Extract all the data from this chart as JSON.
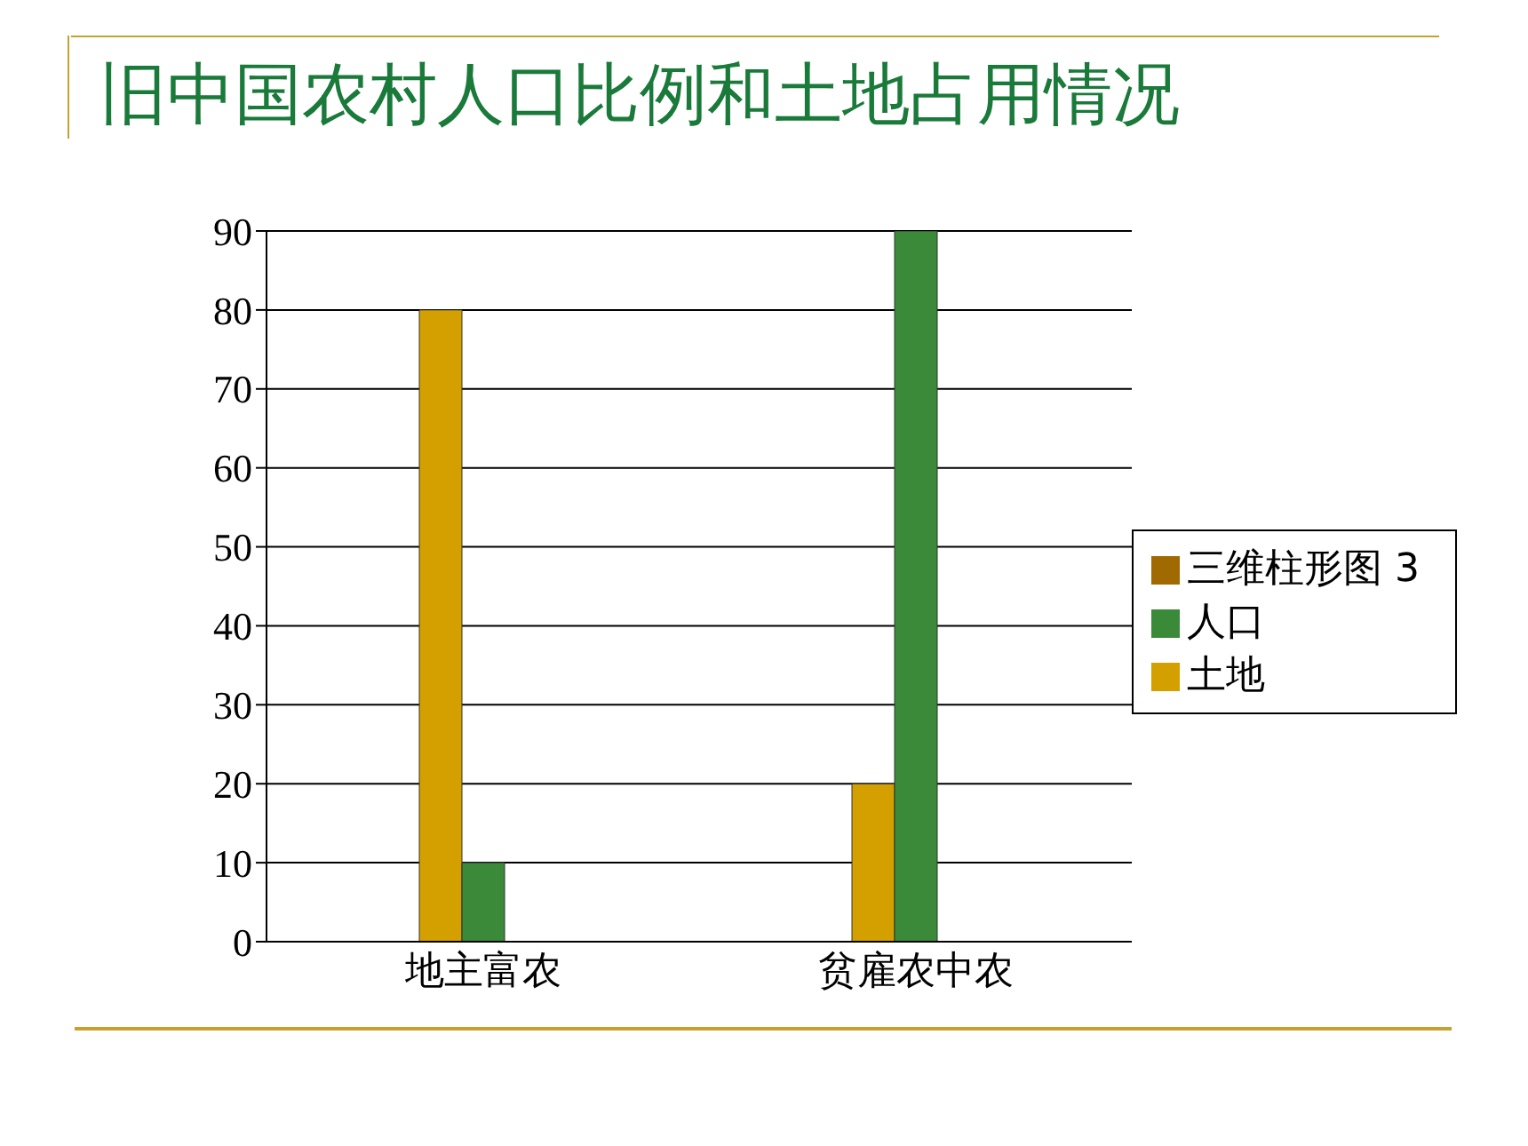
{
  "chart_data": {
    "type": "bar",
    "title": "旧中国农村人口比例和土地占用情况",
    "categories": [
      "地主富农",
      "贫雇农中农"
    ],
    "series": [
      {
        "name": "土地",
        "color": "#d4a000",
        "values": [
          80,
          20
        ]
      },
      {
        "name": "人口",
        "color": "#3a8a3a",
        "values": [
          10,
          90
        ]
      },
      {
        "name": "三维柱形图 3",
        "color": "#a06a00",
        "values": [
          null,
          null
        ]
      }
    ],
    "ylim": [
      0,
      90
    ],
    "yticks": [
      0,
      10,
      20,
      30,
      40,
      50,
      60,
      70,
      80,
      90
    ],
    "grid": "y",
    "legend": "right"
  }
}
